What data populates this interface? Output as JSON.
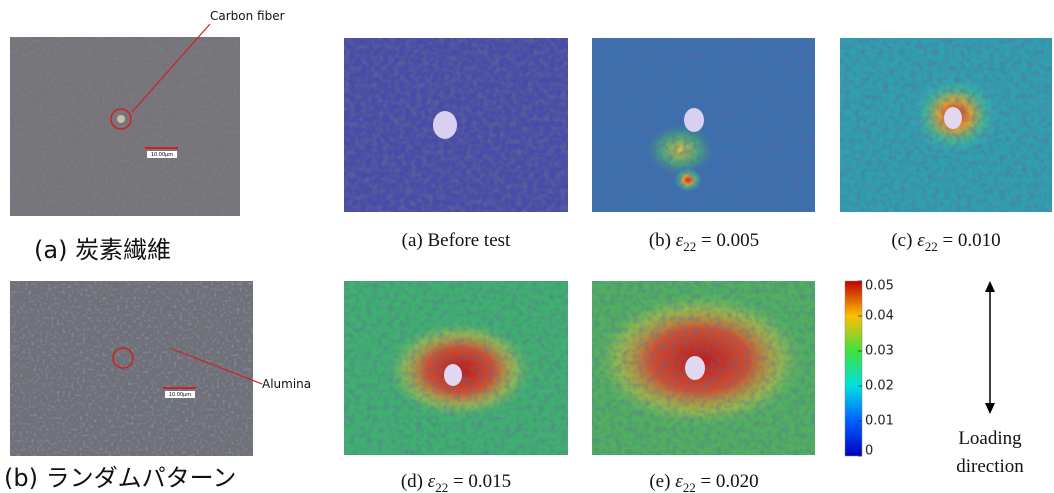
{
  "left_panels": [
    {
      "annotation": "Carbon fiber",
      "scale_label": "10.00μm",
      "caption": "(a) 炭素繊維"
    },
    {
      "annotation": "Alumina",
      "scale_label": "10.00μm",
      "caption": "(b) ランダムパターン"
    }
  ],
  "strain_panels": [
    {
      "caption": "(a) Before test"
    },
    {
      "prefix": "(b) ",
      "symbol": "ε",
      "subscript": "22",
      "value": " = 0.005"
    },
    {
      "prefix": "(c) ",
      "symbol": "ε",
      "subscript": "22",
      "value": " = 0.010"
    },
    {
      "prefix": "(d) ",
      "symbol": "ε",
      "subscript": "22",
      "value": " = 0.015"
    },
    {
      "prefix": "(e) ",
      "symbol": "ε",
      "subscript": "22",
      "value": " = 0.020"
    }
  ],
  "colorbar": {
    "range": [
      0,
      0.05
    ],
    "ticks": [
      0,
      0.01,
      0.02,
      0.03,
      0.04,
      0.05
    ]
  },
  "loading_label": [
    "Loading",
    "direction"
  ]
}
